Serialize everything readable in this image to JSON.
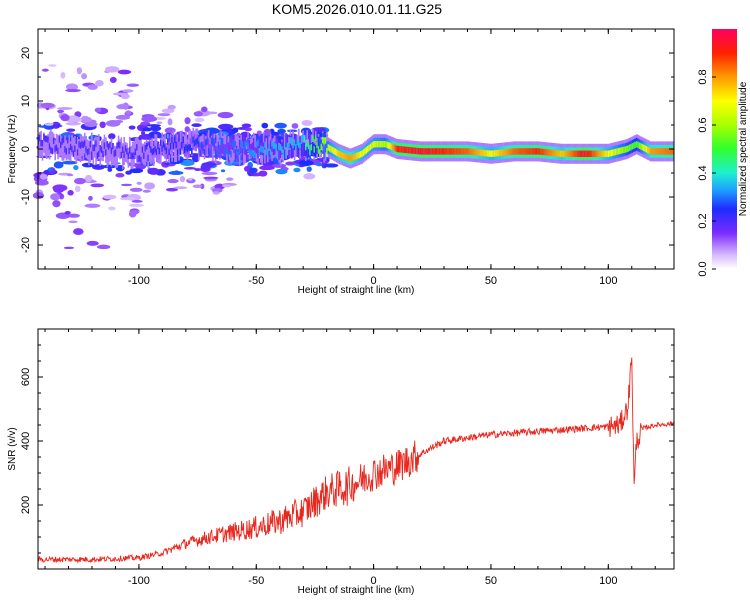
{
  "title": "KOM5.2026.010.01.11.G25",
  "chart_data": [
    {
      "type": "heatmap",
      "xlabel": "Height of straight line (km)",
      "ylabel": "Frequency (Hz)",
      "xlim": [
        -143,
        128
      ],
      "ylim": [
        -25,
        25
      ],
      "xticks": [
        -100,
        -50,
        0,
        50,
        100
      ],
      "yticks": [
        -20,
        -10,
        0,
        10,
        20
      ],
      "colorbar": {
        "label": "Normalized spectral amplitude",
        "range": [
          0,
          1
        ],
        "ticks": [
          0.0,
          0.2,
          0.4,
          0.6,
          0.8
        ]
      },
      "ridge": [
        {
          "x": -140,
          "y": 1,
          "a": 0.2
        },
        {
          "x": -120,
          "y": 0,
          "a": 0.2
        },
        {
          "x": -100,
          "y": -1,
          "a": 0.2
        },
        {
          "x": -80,
          "y": 1,
          "a": 0.25
        },
        {
          "x": -60,
          "y": 0,
          "a": 0.3
        },
        {
          "x": -40,
          "y": 0,
          "a": 0.35
        },
        {
          "x": -30,
          "y": 1,
          "a": 0.4
        },
        {
          "x": -20,
          "y": 0.5,
          "a": 0.6
        },
        {
          "x": -15,
          "y": -1,
          "a": 0.75
        },
        {
          "x": -10,
          "y": -2,
          "a": 0.8
        },
        {
          "x": -5,
          "y": -1,
          "a": 0.7
        },
        {
          "x": 0,
          "y": 1,
          "a": 0.65
        },
        {
          "x": 5,
          "y": 1,
          "a": 0.6
        },
        {
          "x": 10,
          "y": 0,
          "a": 0.9
        },
        {
          "x": 20,
          "y": -0.5,
          "a": 0.95
        },
        {
          "x": 30,
          "y": -0.5,
          "a": 0.9
        },
        {
          "x": 40,
          "y": -0.5,
          "a": 0.85
        },
        {
          "x": 50,
          "y": -1,
          "a": 0.7
        },
        {
          "x": 60,
          "y": -0.5,
          "a": 0.85
        },
        {
          "x": 70,
          "y": -0.5,
          "a": 0.9
        },
        {
          "x": 80,
          "y": -1,
          "a": 0.75
        },
        {
          "x": 90,
          "y": -1,
          "a": 0.95
        },
        {
          "x": 100,
          "y": -1,
          "a": 0.7
        },
        {
          "x": 108,
          "y": 0,
          "a": 0.55
        },
        {
          "x": 112,
          "y": 1,
          "a": 0.5
        },
        {
          "x": 118,
          "y": -0.5,
          "a": 0.8
        },
        {
          "x": 128,
          "y": -0.5,
          "a": 0.85
        }
      ]
    },
    {
      "type": "line",
      "xlabel": "Height of straight line (km)",
      "ylabel": "SNR (v/v)",
      "xlim": [
        -143,
        128
      ],
      "ylim": [
        0,
        750
      ],
      "xticks": [
        -100,
        -50,
        0,
        50,
        100
      ],
      "yticks": [
        200,
        400,
        600
      ],
      "series": [
        {
          "color": "#e8281e",
          "points": [
            [
              -143,
              30
            ],
            [
              -120,
              30
            ],
            [
              -100,
              35
            ],
            [
              -90,
              50
            ],
            [
              -80,
              80
            ],
            [
              -70,
              100
            ],
            [
              -60,
              115
            ],
            [
              -50,
              130
            ],
            [
              -40,
              150
            ],
            [
              -30,
              180
            ],
            [
              -20,
              240
            ],
            [
              -10,
              260
            ],
            [
              0,
              300
            ],
            [
              10,
              320
            ],
            [
              20,
              360
            ],
            [
              30,
              400
            ],
            [
              40,
              410
            ],
            [
              50,
              420
            ],
            [
              60,
              425
            ],
            [
              70,
              430
            ],
            [
              80,
              435
            ],
            [
              90,
              440
            ],
            [
              100,
              445
            ],
            [
              105,
              450
            ],
            [
              108,
              500
            ],
            [
              109,
              560
            ],
            [
              110,
              680
            ],
            [
              111,
              250
            ],
            [
              112,
              400
            ],
            [
              115,
              440
            ],
            [
              120,
              450
            ],
            [
              128,
              455
            ]
          ]
        }
      ]
    }
  ]
}
